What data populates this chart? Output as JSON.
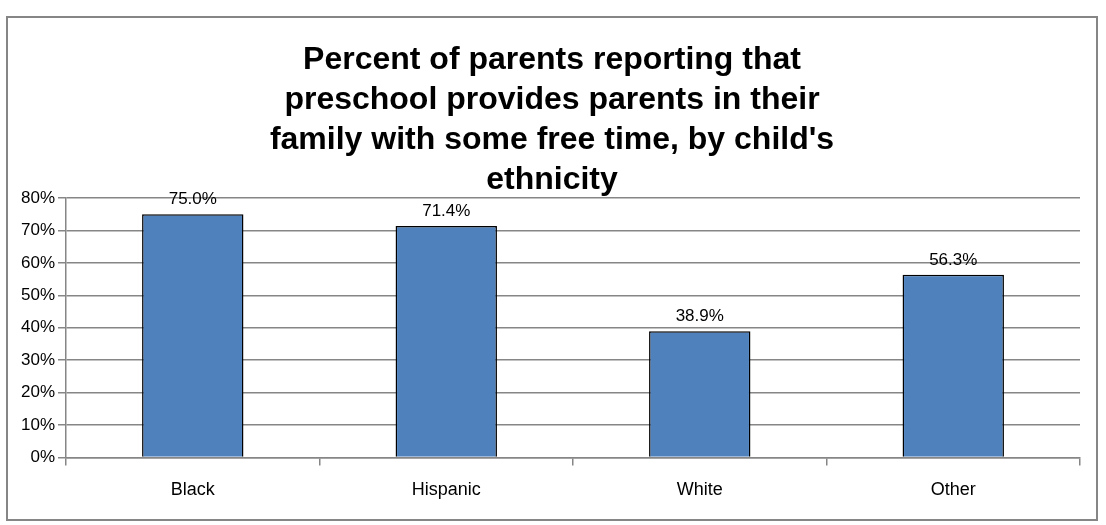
{
  "chart_data": {
    "type": "bar",
    "title": "Percent of parents reporting that preschool provides parents in their family with some free time, by child's ethnicity",
    "categories": [
      "Black",
      "Hispanic",
      "White",
      "Other"
    ],
    "values": [
      75.0,
      71.4,
      38.9,
      56.3
    ],
    "value_labels": [
      "75.0%",
      "71.4%",
      "38.9%",
      "56.3%"
    ],
    "color": "#4f81bd",
    "ylim": [
      0,
      80
    ],
    "yticks": [
      {
        "value": 0,
        "label": "0%"
      },
      {
        "value": 10,
        "label": "10%"
      },
      {
        "value": 20,
        "label": "20%"
      },
      {
        "value": 30,
        "label": "30%"
      },
      {
        "value": 40,
        "label": "40%"
      },
      {
        "value": 50,
        "label": "50%"
      },
      {
        "value": 60,
        "label": "60%"
      },
      {
        "value": 70,
        "label": "70%"
      },
      {
        "value": 80,
        "label": "80%"
      }
    ],
    "grid": "y"
  }
}
